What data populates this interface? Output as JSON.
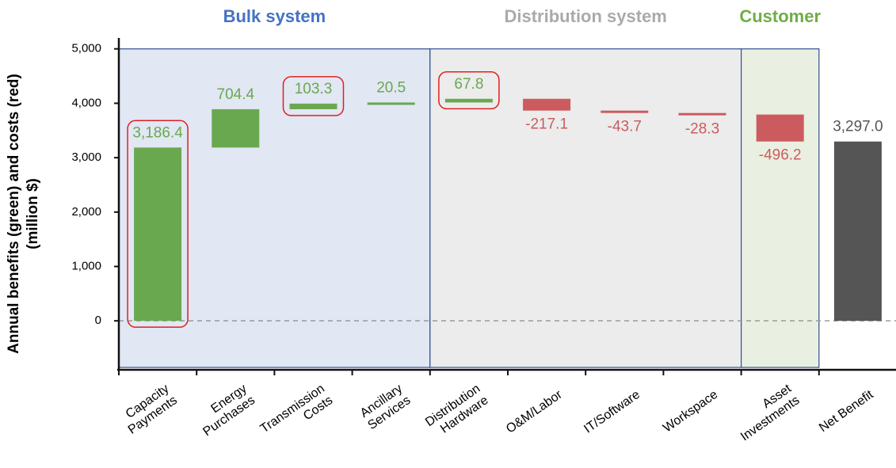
{
  "chart_data": {
    "type": "waterfall",
    "ylabel": "Annual benefits (green) and costs (red)\n(million $)",
    "categories": [
      "Capacity\nPayments",
      "Energy\nPurchases",
      "Transmission\nCosts",
      "Ancillary\nServices",
      "Distribution\nHardware",
      "O&M/Labor",
      "IT/Software",
      "Workspace",
      "Asset\nInvestments",
      "Net Benefit"
    ],
    "values": [
      3186.4,
      704.4,
      103.3,
      20.5,
      67.8,
      -217.1,
      -43.7,
      -28.3,
      -496.2,
      3297.0
    ],
    "value_labels": [
      "3,186.4",
      "704.4",
      "103.3",
      "20.5",
      "67.8",
      "-217.1",
      "-43.7",
      "-28.3",
      "-496.2",
      "3,297.0"
    ],
    "totals": [
      9
    ],
    "colors": {
      "increase": "#6aa84f",
      "decrease": "#cc5b5f",
      "total": "#555555"
    },
    "regions": [
      {
        "label": "Bulk system",
        "span": [
          0,
          3
        ],
        "color": "#4472c4",
        "fill": "#e1e7f3"
      },
      {
        "label": "Distribution system",
        "span": [
          4,
          7
        ],
        "color": "#aaaaaa",
        "fill": "#ececec"
      },
      {
        "label": "Customer",
        "span": [
          8,
          8
        ],
        "color": "#70ad47",
        "fill": "#e9f0e1"
      }
    ],
    "highlight": [
      0,
      2,
      4
    ],
    "ylim": [
      -900,
      5200
    ],
    "yticks": [
      0,
      {
        "value": 1000,
        "label": "1,000"
      },
      {
        "value": 2000,
        "label": "2,000"
      },
      {
        "value": 3000,
        "label": "3,000"
      },
      {
        "value": 4000,
        "label": "4,000"
      },
      {
        "value": 5000,
        "label": "5,000"
      }
    ]
  }
}
